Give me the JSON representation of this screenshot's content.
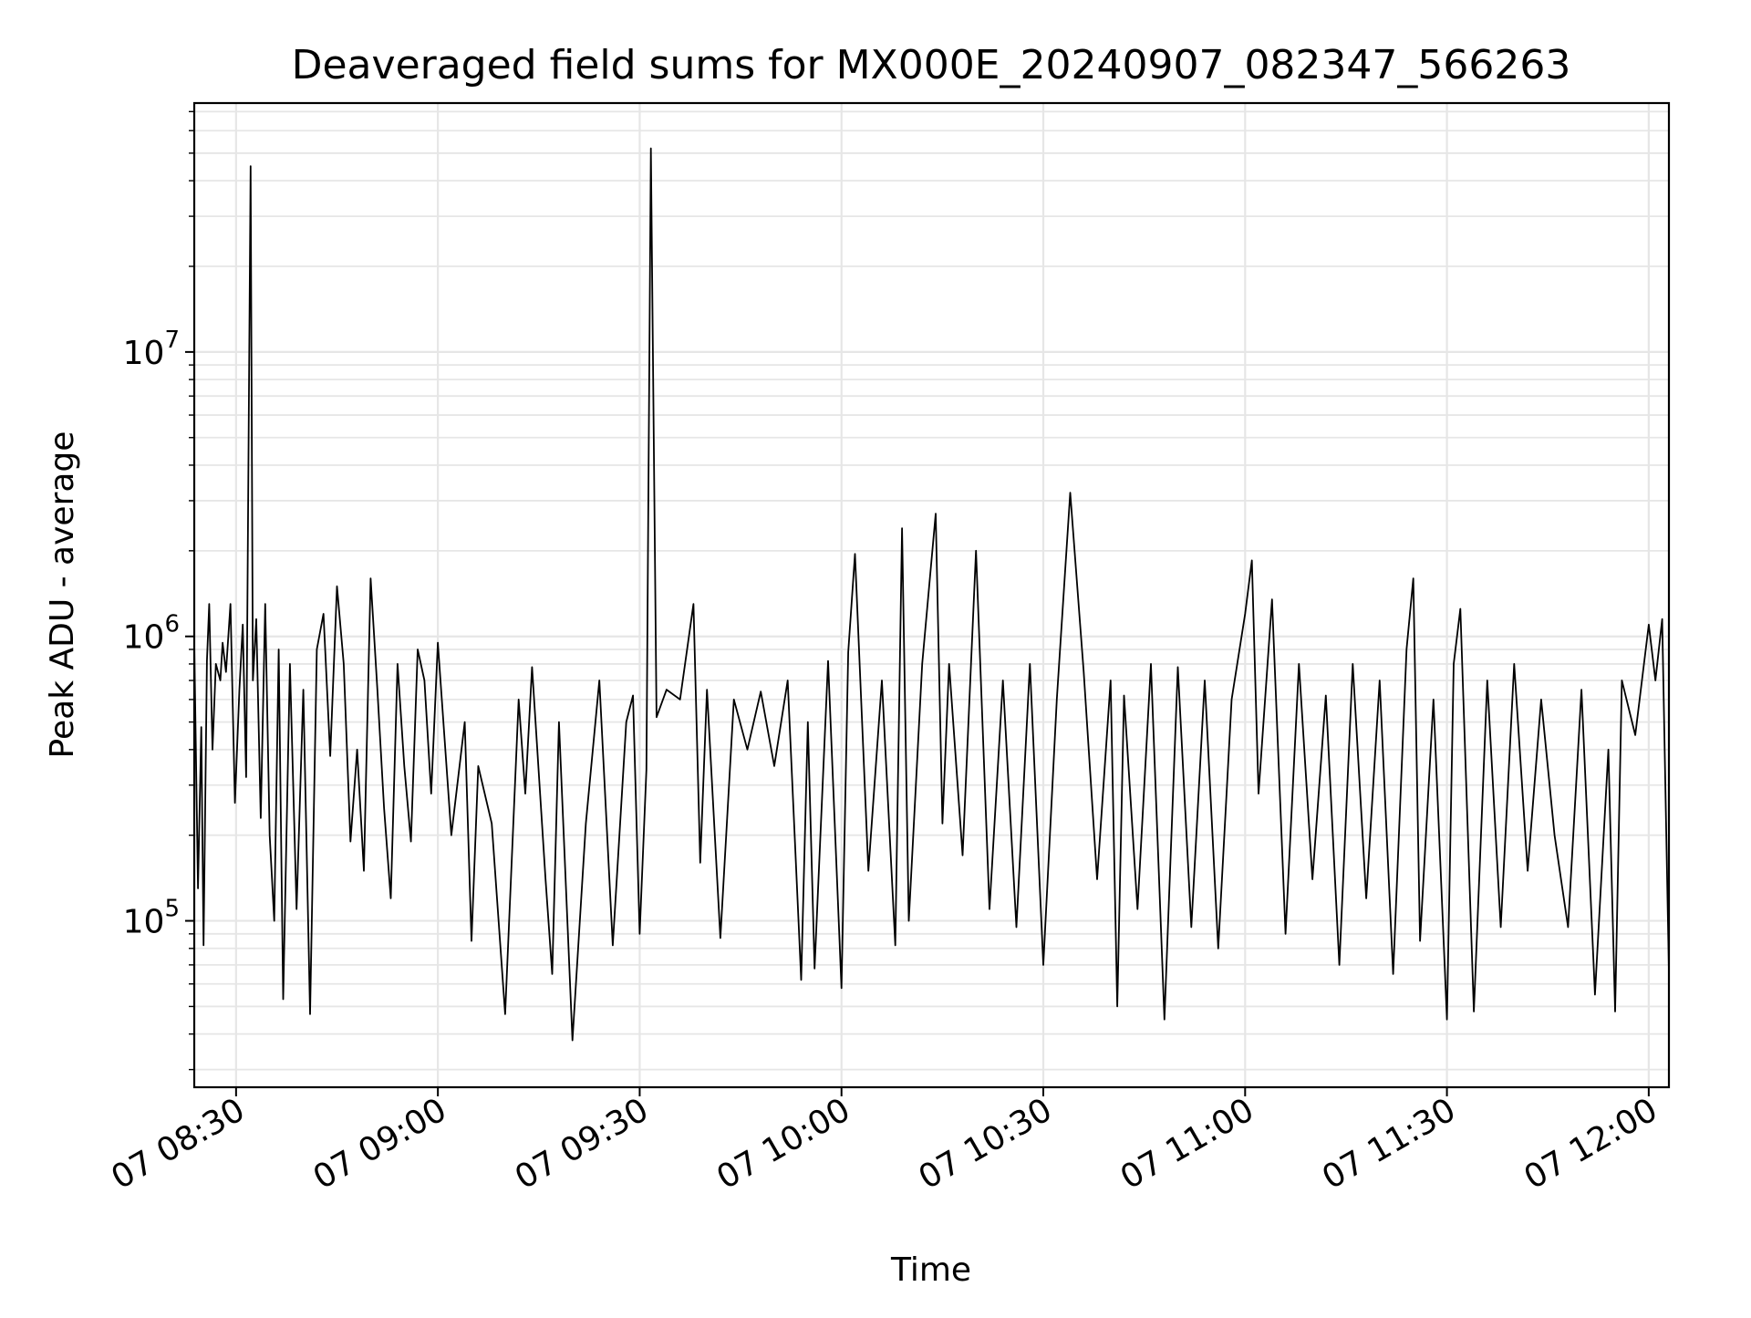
{
  "chart_data": {
    "type": "line",
    "title": "Deaveraged field sums for MX000E_20240907_082347_566263",
    "xlabel": "Time",
    "ylabel": "Peak ADU - average",
    "x_tick_labels": [
      "07 08:30",
      "07 09:00",
      "07 09:30",
      "07 10:00",
      "07 10:30",
      "07 11:00",
      "07 11:30",
      "07 12:00"
    ],
    "x_ticks": [
      "2024-09-07T08:30",
      "2024-09-07T09:00",
      "2024-09-07T09:30",
      "2024-09-07T10:00",
      "2024-09-07T10:30",
      "2024-09-07T11:00",
      "2024-09-07T11:30",
      "2024-09-07T12:00"
    ],
    "xlim": [
      "2024-09-07T08:23:47",
      "2024-09-07T12:03:00"
    ],
    "y_scale": "log",
    "ylim": [
      26000,
      75000000
    ],
    "y_tick_labels": [
      {
        "base": "10",
        "exp": "5",
        "value": 100000
      },
      {
        "base": "10",
        "exp": "6",
        "value": 1000000
      },
      {
        "base": "10",
        "exp": "7",
        "value": 10000000
      }
    ],
    "grid": true,
    "line_color": "#000000",
    "grid_color": "#e6e6e6",
    "series": [
      {
        "x": [
          "2024-09-07T08:23:47",
          "2024-09-07T08:24:20",
          "2024-09-07T08:24:50",
          "2024-09-07T08:25:10",
          "2024-09-07T08:25:40",
          "2024-09-07T08:26:00",
          "2024-09-07T08:26:30",
          "2024-09-07T08:27:00",
          "2024-09-07T08:27:40",
          "2024-09-07T08:28:00",
          "2024-09-07T08:28:30",
          "2024-09-07T08:29:10",
          "2024-09-07T08:29:50",
          "2024-09-07T08:30:30",
          "2024-09-07T08:31:00",
          "2024-09-07T08:31:30",
          "2024-09-07T08:32:10",
          "2024-09-07T08:32:30",
          "2024-09-07T08:33:00",
          "2024-09-07T08:33:40",
          "2024-09-07T08:34:20",
          "2024-09-07T08:35:00",
          "2024-09-07T08:35:40",
          "2024-09-07T08:36:20",
          "2024-09-07T08:37:00",
          "2024-09-07T08:38:00",
          "2024-09-07T08:39:00",
          "2024-09-07T08:40:00",
          "2024-09-07T08:41:00",
          "2024-09-07T08:42:00",
          "2024-09-07T08:43:00",
          "2024-09-07T08:44:00",
          "2024-09-07T08:45:00",
          "2024-09-07T08:46:00",
          "2024-09-07T08:47:00",
          "2024-09-07T08:48:00",
          "2024-09-07T08:49:00",
          "2024-09-07T08:50:00",
          "2024-09-07T08:51:00",
          "2024-09-07T08:52:00",
          "2024-09-07T08:53:00",
          "2024-09-07T08:54:00",
          "2024-09-07T08:55:00",
          "2024-09-07T08:56:00",
          "2024-09-07T08:57:00",
          "2024-09-07T08:58:00",
          "2024-09-07T08:59:00",
          "2024-09-07T09:00:00",
          "2024-09-07T09:02:00",
          "2024-09-07T09:04:00",
          "2024-09-07T09:05:00",
          "2024-09-07T09:06:00",
          "2024-09-07T09:08:00",
          "2024-09-07T09:10:00",
          "2024-09-07T09:12:00",
          "2024-09-07T09:13:00",
          "2024-09-07T09:14:00",
          "2024-09-07T09:16:00",
          "2024-09-07T09:17:00",
          "2024-09-07T09:18:00",
          "2024-09-07T09:20:00",
          "2024-09-07T09:22:00",
          "2024-09-07T09:24:00",
          "2024-09-07T09:26:00",
          "2024-09-07T09:28:00",
          "2024-09-07T09:29:00",
          "2024-09-07T09:30:00",
          "2024-09-07T09:31:00",
          "2024-09-07T09:31:40",
          "2024-09-07T09:32:30",
          "2024-09-07T09:34:00",
          "2024-09-07T09:36:00",
          "2024-09-07T09:38:00",
          "2024-09-07T09:39:00",
          "2024-09-07T09:40:00",
          "2024-09-07T09:42:00",
          "2024-09-07T09:44:00",
          "2024-09-07T09:46:00",
          "2024-09-07T09:48:00",
          "2024-09-07T09:50:00",
          "2024-09-07T09:52:00",
          "2024-09-07T09:54:00",
          "2024-09-07T09:55:00",
          "2024-09-07T09:56:00",
          "2024-09-07T09:58:00",
          "2024-09-07T10:00:00",
          "2024-09-07T10:01:00",
          "2024-09-07T10:02:00",
          "2024-09-07T10:04:00",
          "2024-09-07T10:06:00",
          "2024-09-07T10:08:00",
          "2024-09-07T10:09:00",
          "2024-09-07T10:10:00",
          "2024-09-07T10:12:00",
          "2024-09-07T10:14:00",
          "2024-09-07T10:15:00",
          "2024-09-07T10:16:00",
          "2024-09-07T10:18:00",
          "2024-09-07T10:20:00",
          "2024-09-07T10:22:00",
          "2024-09-07T10:24:00",
          "2024-09-07T10:26:00",
          "2024-09-07T10:28:00",
          "2024-09-07T10:30:00",
          "2024-09-07T10:32:00",
          "2024-09-07T10:34:00",
          "2024-09-07T10:36:00",
          "2024-09-07T10:38:00",
          "2024-09-07T10:40:00",
          "2024-09-07T10:41:00",
          "2024-09-07T10:42:00",
          "2024-09-07T10:44:00",
          "2024-09-07T10:46:00",
          "2024-09-07T10:48:00",
          "2024-09-07T10:50:00",
          "2024-09-07T10:52:00",
          "2024-09-07T10:54:00",
          "2024-09-07T10:56:00",
          "2024-09-07T10:58:00",
          "2024-09-07T11:00:00",
          "2024-09-07T11:01:00",
          "2024-09-07T11:02:00",
          "2024-09-07T11:04:00",
          "2024-09-07T11:06:00",
          "2024-09-07T11:08:00",
          "2024-09-07T11:10:00",
          "2024-09-07T11:12:00",
          "2024-09-07T11:14:00",
          "2024-09-07T11:16:00",
          "2024-09-07T11:18:00",
          "2024-09-07T11:20:00",
          "2024-09-07T11:22:00",
          "2024-09-07T11:24:00",
          "2024-09-07T11:25:00",
          "2024-09-07T11:26:00",
          "2024-09-07T11:28:00",
          "2024-09-07T11:30:00",
          "2024-09-07T11:31:00",
          "2024-09-07T11:32:00",
          "2024-09-07T11:34:00",
          "2024-09-07T11:36:00",
          "2024-09-07T11:38:00",
          "2024-09-07T11:40:00",
          "2024-09-07T11:42:00",
          "2024-09-07T11:44:00",
          "2024-09-07T11:46:00",
          "2024-09-07T11:48:00",
          "2024-09-07T11:50:00",
          "2024-09-07T11:52:00",
          "2024-09-07T11:54:00",
          "2024-09-07T11:55:00",
          "2024-09-07T11:56:00",
          "2024-09-07T11:58:00",
          "2024-09-07T12:00:00",
          "2024-09-07T12:01:00",
          "2024-09-07T12:02:00",
          "2024-09-07T12:03:00"
        ],
        "values": [
          950000,
          130000,
          480000,
          82000,
          820000,
          1300000,
          400000,
          800000,
          700000,
          950000,
          750000,
          1300000,
          260000,
          650000,
          1100000,
          320000,
          45000000,
          700000,
          1150000,
          230000,
          1300000,
          200000,
          100000,
          900000,
          53000,
          800000,
          110000,
          650000,
          47000,
          900000,
          1200000,
          380000,
          1500000,
          800000,
          190000,
          400000,
          150000,
          1600000,
          650000,
          250000,
          120000,
          800000,
          350000,
          190000,
          900000,
          700000,
          280000,
          950000,
          200000,
          500000,
          85000,
          350000,
          220000,
          47000,
          600000,
          280000,
          780000,
          140000,
          65000,
          500000,
          38000,
          220000,
          700000,
          82000,
          500000,
          620000,
          90000,
          340000,
          52000000,
          520000,
          650000,
          600000,
          1300000,
          160000,
          650000,
          87000,
          600000,
          400000,
          640000,
          350000,
          700000,
          62000,
          500000,
          68000,
          820000,
          58000,
          880000,
          1950000,
          150000,
          700000,
          82000,
          2400000,
          100000,
          800000,
          2700000,
          220000,
          800000,
          170000,
          2000000,
          110000,
          700000,
          95000,
          800000,
          70000,
          600000,
          3200000,
          750000,
          140000,
          700000,
          50000,
          620000,
          110000,
          800000,
          45000,
          780000,
          95000,
          700000,
          80000,
          600000,
          1200000,
          1850000,
          280000,
          1350000,
          90000,
          800000,
          140000,
          620000,
          70000,
          800000,
          120000,
          700000,
          65000,
          900000,
          1600000,
          85000,
          600000,
          45000,
          800000,
          1250000,
          48000,
          700000,
          95000,
          800000,
          150000,
          600000,
          200000,
          95000,
          650000,
          55000,
          400000,
          48000,
          700000,
          450000,
          1100000,
          700000,
          1150000,
          66000
        ]
      }
    ]
  }
}
